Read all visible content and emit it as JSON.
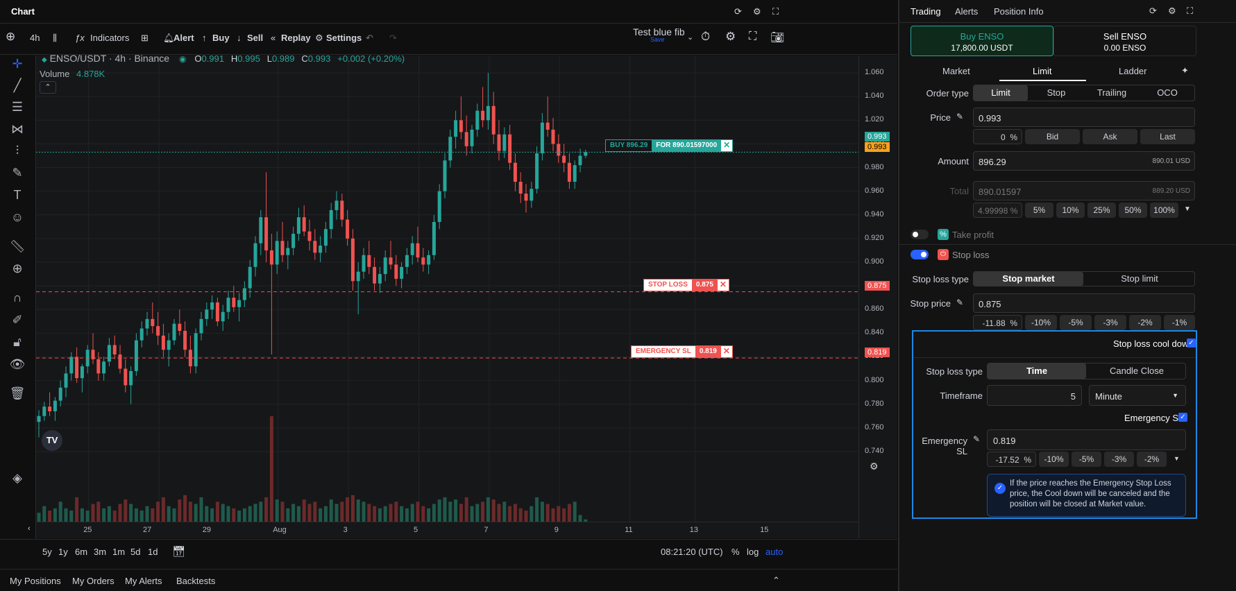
{
  "chart_panel": {
    "title": "Chart",
    "toolbar": {
      "interval": "4h",
      "indicators": "Indicators",
      "alert": "Alert",
      "buy": "Buy",
      "sell": "Sell",
      "replay": "Replay",
      "settings": "Settings",
      "layout_name": "Test blue fib",
      "layout_save": "Save"
    },
    "legend": {
      "symbol": "ENSO/USDT · 4h · Binance",
      "open_label": "O",
      "open": "0.991",
      "high_label": "H",
      "high": "0.995",
      "low_label": "L",
      "low": "0.989",
      "close_label": "C",
      "close": "0.993",
      "change": "+0.002 (+0.20%)",
      "volume_label": "Volume",
      "volume": "4.878K"
    },
    "orders": {
      "buy_label": "BUY 896.29",
      "buy_for": "FOR 890.01597000",
      "stop_label": "STOP LOSS",
      "stop_price": "0.875",
      "emergency_label": "EMERGENCY SL",
      "emergency_price": "0.819"
    },
    "price_badges": {
      "last_green": "0.993",
      "last_orange": "0.993",
      "stop": "0.875",
      "emergency": "0.819"
    },
    "time_ranges": [
      "5y",
      "1y",
      "6m",
      "3m",
      "1m",
      "5d",
      "1d"
    ],
    "clock": "08:21:20 (UTC)",
    "scale_percent": "%",
    "scale_log": "log",
    "scale_auto": "auto",
    "bottom_tabs": [
      "My Positions",
      "My Orders",
      "My Alerts",
      "Backtests"
    ]
  },
  "chart_data": {
    "type": "candlestick",
    "symbol": "ENSO/USDT",
    "interval": "4h",
    "ylim": [
      0.73,
      1.07
    ],
    "y_ticks": [
      "1.060",
      "1.040",
      "1.020",
      "1.000",
      "0.980",
      "0.960",
      "0.940",
      "0.920",
      "0.900",
      "0.880",
      "0.860",
      "0.840",
      "0.820",
      "0.800",
      "0.780",
      "0.760",
      "0.740"
    ],
    "x_ticks": [
      "25",
      "27",
      "29",
      "Aug",
      "3",
      "5",
      "7",
      "9",
      "11",
      "13",
      "15"
    ],
    "candles": [
      [
        0.765,
        0.775,
        0.752,
        0.77
      ],
      [
        0.77,
        0.782,
        0.766,
        0.778
      ],
      [
        0.778,
        0.79,
        0.77,
        0.774
      ],
      [
        0.774,
        0.786,
        0.766,
        0.783
      ],
      [
        0.783,
        0.8,
        0.778,
        0.794
      ],
      [
        0.794,
        0.812,
        0.786,
        0.806
      ],
      [
        0.806,
        0.824,
        0.8,
        0.82
      ],
      [
        0.82,
        0.828,
        0.798,
        0.802
      ],
      [
        0.802,
        0.814,
        0.79,
        0.812
      ],
      [
        0.812,
        0.83,
        0.806,
        0.826
      ],
      [
        0.826,
        0.84,
        0.814,
        0.818
      ],
      [
        0.818,
        0.824,
        0.8,
        0.806
      ],
      [
        0.806,
        0.82,
        0.8,
        0.816
      ],
      [
        0.816,
        0.836,
        0.812,
        0.83
      ],
      [
        0.83,
        0.838,
        0.818,
        0.822
      ],
      [
        0.822,
        0.83,
        0.806,
        0.81
      ],
      [
        0.81,
        0.818,
        0.79,
        0.796
      ],
      [
        0.796,
        0.812,
        0.78,
        0.808
      ],
      [
        0.808,
        0.84,
        0.804,
        0.834
      ],
      [
        0.834,
        0.85,
        0.828,
        0.844
      ],
      [
        0.844,
        0.858,
        0.838,
        0.852
      ],
      [
        0.852,
        0.866,
        0.84,
        0.846
      ],
      [
        0.846,
        0.858,
        0.83,
        0.838
      ],
      [
        0.838,
        0.848,
        0.82,
        0.826
      ],
      [
        0.826,
        0.84,
        0.812,
        0.834
      ],
      [
        0.834,
        0.852,
        0.83,
        0.848
      ],
      [
        0.848,
        0.86,
        0.838,
        0.842
      ],
      [
        0.842,
        0.85,
        0.82,
        0.826
      ],
      [
        0.826,
        0.838,
        0.806,
        0.812
      ],
      [
        0.812,
        0.844,
        0.806,
        0.84
      ],
      [
        0.84,
        0.858,
        0.834,
        0.852
      ],
      [
        0.852,
        0.866,
        0.846,
        0.86
      ],
      [
        0.86,
        0.872,
        0.852,
        0.866
      ],
      [
        0.866,
        0.87,
        0.846,
        0.85
      ],
      [
        0.85,
        0.864,
        0.842,
        0.858
      ],
      [
        0.858,
        0.876,
        0.852,
        0.87
      ],
      [
        0.87,
        0.88,
        0.858,
        0.862
      ],
      [
        0.862,
        0.874,
        0.85,
        0.868
      ],
      [
        0.868,
        0.884,
        0.862,
        0.878
      ],
      [
        0.878,
        0.902,
        0.87,
        0.896
      ],
      [
        0.896,
        0.922,
        0.888,
        0.916
      ],
      [
        0.916,
        0.944,
        0.906,
        0.938
      ],
      [
        0.938,
        0.976,
        0.9,
        0.91
      ],
      [
        0.91,
        0.924,
        0.822,
        0.898
      ],
      [
        0.898,
        0.926,
        0.89,
        0.918
      ],
      [
        0.918,
        0.934,
        0.9,
        0.906
      ],
      [
        0.906,
        0.918,
        0.894,
        0.912
      ],
      [
        0.912,
        0.93,
        0.906,
        0.924
      ],
      [
        0.924,
        0.946,
        0.918,
        0.938
      ],
      [
        0.938,
        0.948,
        0.922,
        0.926
      ],
      [
        0.926,
        0.936,
        0.91,
        0.918
      ],
      [
        0.918,
        0.928,
        0.902,
        0.908
      ],
      [
        0.908,
        0.922,
        0.9,
        0.914
      ],
      [
        0.914,
        0.934,
        0.908,
        0.928
      ],
      [
        0.928,
        0.95,
        0.92,
        0.944
      ],
      [
        0.944,
        0.96,
        0.936,
        0.952
      ],
      [
        0.952,
        0.958,
        0.93,
        0.936
      ],
      [
        0.936,
        0.944,
        0.914,
        0.92
      ],
      [
        0.92,
        0.928,
        0.876,
        0.884
      ],
      [
        0.884,
        0.9,
        0.856,
        0.892
      ],
      [
        0.892,
        0.912,
        0.886,
        0.906
      ],
      [
        0.906,
        0.918,
        0.89,
        0.896
      ],
      [
        0.896,
        0.904,
        0.876,
        0.882
      ],
      [
        0.882,
        0.896,
        0.874,
        0.89
      ],
      [
        0.89,
        0.91,
        0.884,
        0.904
      ],
      [
        0.904,
        0.918,
        0.894,
        0.898
      ],
      [
        0.898,
        0.906,
        0.88,
        0.886
      ],
      [
        0.886,
        0.9,
        0.878,
        0.896
      ],
      [
        0.896,
        0.912,
        0.89,
        0.906
      ],
      [
        0.906,
        0.922,
        0.898,
        0.916
      ],
      [
        0.916,
        0.93,
        0.9,
        0.904
      ],
      [
        0.904,
        0.912,
        0.892,
        0.898
      ],
      [
        0.898,
        0.91,
        0.89,
        0.906
      ],
      [
        0.906,
        0.94,
        0.902,
        0.934
      ],
      [
        0.934,
        0.966,
        0.928,
        0.96
      ],
      [
        0.96,
        0.992,
        0.954,
        0.986
      ],
      [
        0.986,
        1.012,
        0.98,
        1.006
      ],
      [
        1.006,
        1.028,
        0.996,
        1.02
      ],
      [
        1.02,
        1.04,
        1.004,
        1.01
      ],
      [
        1.01,
        1.024,
        0.99,
        0.998
      ],
      [
        0.998,
        1.016,
        0.992,
        1.012
      ],
      [
        1.012,
        1.034,
        1.006,
        1.028
      ],
      [
        1.028,
        1.048,
        1.014,
        1.02
      ],
      [
        1.02,
        1.06,
        1.012,
        1.032
      ],
      [
        1.032,
        1.044,
        1.0,
        1.008
      ],
      [
        1.008,
        1.02,
        0.986,
        0.994
      ],
      [
        0.994,
        1.014,
        0.988,
        1.008
      ],
      [
        1.008,
        1.016,
        0.978,
        0.984
      ],
      [
        0.984,
        0.992,
        0.96,
        0.968
      ],
      [
        0.968,
        0.976,
        0.95,
        0.958
      ],
      [
        0.958,
        0.966,
        0.942,
        0.952
      ],
      [
        0.952,
        0.968,
        0.946,
        0.962
      ],
      [
        0.962,
        0.998,
        0.958,
        0.992
      ],
      [
        0.992,
        1.026,
        0.986,
        1.018
      ],
      [
        1.018,
        1.04,
        1.006,
        1.012
      ],
      [
        1.012,
        1.022,
        0.994,
        1.0
      ],
      [
        1.0,
        1.008,
        0.984,
        0.99
      ],
      [
        0.99,
        1.0,
        0.976,
        0.984
      ],
      [
        0.984,
        0.992,
        0.962,
        0.968
      ],
      [
        0.968,
        0.986,
        0.962,
        0.982
      ],
      [
        0.982,
        0.996,
        0.976,
        0.99
      ],
      [
        0.99,
        0.995,
        0.988,
        0.993
      ]
    ],
    "volume_scale": [
      0,
      1
    ],
    "volumes": [
      0.2,
      0.35,
      0.25,
      0.3,
      0.45,
      0.3,
      0.25,
      0.55,
      0.3,
      0.25,
      0.4,
      0.45,
      0.3,
      0.35,
      0.25,
      0.4,
      0.5,
      0.4,
      0.3,
      0.25,
      0.35,
      0.3,
      0.45,
      0.55,
      0.35,
      0.3,
      0.5,
      0.6,
      0.45,
      0.4,
      0.55,
      0.35,
      0.3,
      0.45,
      0.4,
      0.35,
      0.3,
      0.25,
      0.3,
      0.35,
      0.4,
      0.45,
      0.55,
      1.0,
      0.5,
      0.45,
      0.3,
      0.4,
      0.35,
      0.5,
      0.4,
      0.45,
      0.3,
      0.35,
      0.5,
      0.4,
      0.45,
      0.55,
      0.6,
      0.5,
      0.45,
      0.4,
      0.35,
      0.3,
      0.35,
      0.4,
      0.45,
      0.35,
      0.3,
      0.4,
      0.45,
      0.35,
      0.3,
      0.4,
      0.5,
      0.55,
      0.45,
      0.5,
      0.4,
      0.55,
      0.35,
      0.4,
      0.45,
      0.55,
      0.5,
      0.4,
      0.45,
      0.35,
      0.4,
      0.3,
      0.25,
      0.35,
      0.55,
      0.45,
      0.4,
      0.3,
      0.35,
      0.3,
      0.4,
      0.45,
      0.15,
      0.05
    ],
    "levels": {
      "buy": 0.993,
      "stop_loss": 0.875,
      "emergency_sl": 0.819
    },
    "colors": {
      "up": "#26a69a",
      "down": "#ef5350",
      "stop": "#ef5350",
      "buy": "#26a69a"
    }
  },
  "right_panel": {
    "tabs": [
      "Trading",
      "Alerts",
      "Position Info"
    ],
    "buy_title": "Buy ENSO",
    "buy_amount": "17,800.00 USDT",
    "sell_title": "Sell ENSO",
    "sell_amount": "0.00 ENSO",
    "order_tabs": [
      "Market",
      "Limit",
      "Ladder"
    ],
    "order_type_label": "Order type",
    "order_types": [
      "Limit",
      "Stop",
      "Trailing",
      "OCO"
    ],
    "price_label": "Price",
    "price_value": "0.993",
    "price_offset": "0",
    "price_offset_unit": "%",
    "price_buttons": [
      "Bid",
      "Ask",
      "Last"
    ],
    "amount_label": "Amount",
    "amount_value": "896.29",
    "amount_usd": "890.01 USD",
    "total_label": "Total",
    "total_value": "890.01597",
    "total_usd": "889.20 USD",
    "total_percent": "4.99998",
    "total_percent_unit": "%",
    "percent_buttons": [
      "5%",
      "10%",
      "25%",
      "50%",
      "100%"
    ],
    "take_profit_label": "Take profit",
    "stop_loss_label": "Stop loss",
    "stop_loss_type_label": "Stop loss type",
    "stop_loss_types": [
      "Stop market",
      "Stop limit"
    ],
    "stop_price_label": "Stop price",
    "stop_price_value": "0.875",
    "stop_offset": "-11.88",
    "stop_offset_unit": "%",
    "stop_buttons": [
      "-10%",
      "-5%",
      "-3%",
      "-2%",
      "-1%"
    ],
    "cooldown": {
      "title": "Stop loss cool down",
      "type_label": "Stop loss type",
      "types": [
        "Time",
        "Candle Close"
      ],
      "timeframe_label": "Timeframe",
      "timeframe_value": "5",
      "timeframe_unit": "Minute",
      "emergency_toggle": "Emergency SL",
      "emergency_label": "Emergency SL",
      "emergency_value": "0.819",
      "emergency_offset": "-17.52",
      "emergency_offset_unit": "%",
      "emergency_buttons": [
        "-10%",
        "-5%",
        "-3%",
        "-2%"
      ],
      "info": "If the price reaches the Emergency Stop Loss price, the Cool down will be canceled and the position will be closed at Market value."
    }
  }
}
